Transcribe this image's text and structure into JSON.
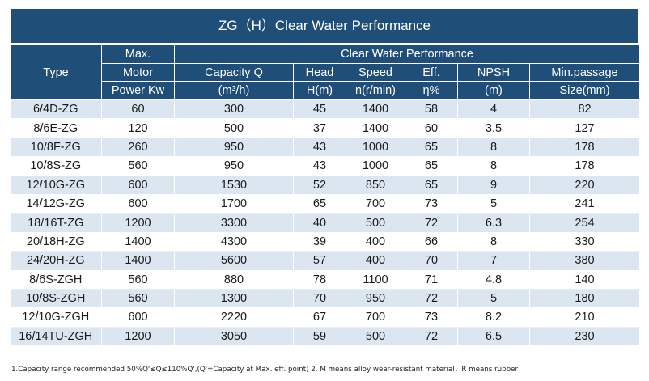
{
  "title": "ZG（H）Clear Water Performance",
  "header": {
    "type": "Type",
    "max": "Max.",
    "motor": "Motor",
    "power_kw": "Power Kw",
    "group": "Clear Water Performance",
    "capacity": "Capacity  Q",
    "head": "Head",
    "speed": "Speed",
    "eff": "Eff.",
    "npsh": "NPSH",
    "passage": "Min.passage",
    "capacity_unit": "(m³/h)",
    "head_unit": "H(m)",
    "speed_unit": "n(r/min)",
    "eff_unit": "η%",
    "npsh_unit": "(m)",
    "passage_unit": "Size(mm)"
  },
  "rows": [
    [
      "6/4D-ZG",
      "60",
      "300",
      "45",
      "1400",
      "58",
      "4",
      "82"
    ],
    [
      "8/6E-ZG",
      "120",
      "500",
      "37",
      "1400",
      "60",
      "3.5",
      "127"
    ],
    [
      "10/8F-ZG",
      "260",
      "950",
      "43",
      "1000",
      "65",
      "8",
      "178"
    ],
    [
      "10/8S-ZG",
      "560",
      "950",
      "43",
      "1000",
      "65",
      "8",
      "178"
    ],
    [
      "12/10G-ZG",
      "600",
      "1530",
      "52",
      "850",
      "65",
      "9",
      "220"
    ],
    [
      "14/12G-ZG",
      "600",
      "1700",
      "65",
      "700",
      "73",
      "5",
      "241"
    ],
    [
      "18/16T-ZG",
      "1200",
      "3300",
      "40",
      "500",
      "72",
      "6.3",
      "254"
    ],
    [
      "20/18H-ZG",
      "1400",
      "4300",
      "39",
      "400",
      "66",
      "8",
      "330"
    ],
    [
      "24/20H-ZG",
      "1400",
      "5600",
      "57",
      "400",
      "70",
      "7",
      "380"
    ],
    [
      "8/6S-ZGH",
      "560",
      "880",
      "78",
      "1100",
      "71",
      "4.8",
      "140"
    ],
    [
      "10/8S-ZGH",
      "560",
      "1300",
      "70",
      "950",
      "72",
      "5",
      "180"
    ],
    [
      "12/10G-ZGH",
      "600",
      "2220",
      "67",
      "700",
      "73",
      "8.2",
      "210"
    ],
    [
      "16/14TU-ZGH",
      "1200",
      "3050",
      "59",
      "500",
      "72",
      "6.5",
      "230"
    ]
  ],
  "note": "1.Capacity range recommended 50%Q'≤Q≤110%Q',(Q'=Capacity at Max. eff. point) 2. M means alloy wear-resistant material，R means rubber",
  "colors": {
    "header_bg": "#1f4e79",
    "row_alt": "#dce6f1"
  }
}
